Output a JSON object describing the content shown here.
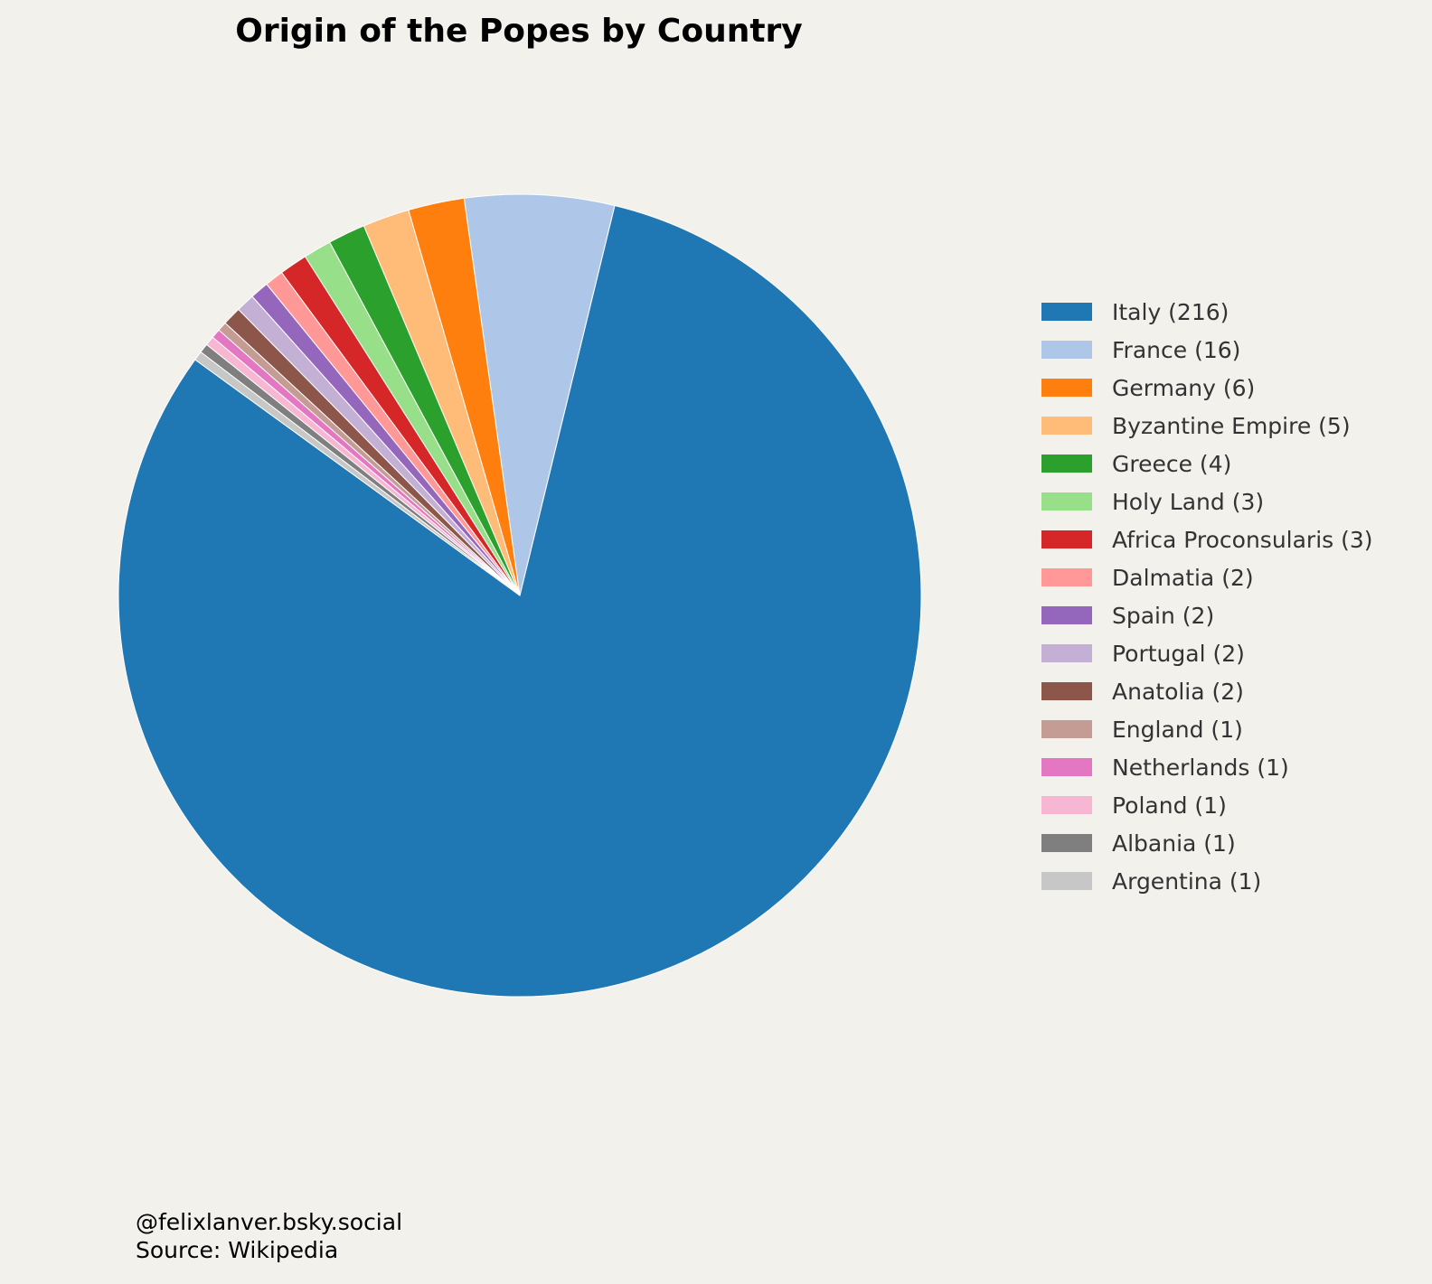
{
  "chart_data": {
    "type": "pie",
    "title": "Origin of the Popes by Country",
    "start_angle_deg": 144,
    "direction": "counterclockwise",
    "legend_position": "right",
    "categories": [
      "Italy (216)",
      "France (16)",
      "Germany (6)",
      "Byzantine Empire (5)",
      "Greece (4)",
      "Holy Land (3)",
      "Africa Proconsularis (3)",
      "Dalmatia (2)",
      "Spain (2)",
      "Portugal (2)",
      "Anatolia (2)",
      "England (1)",
      "Netherlands (1)",
      "Poland (1)",
      "Albania (1)",
      "Argentina (1)"
    ],
    "values": [
      216,
      16,
      6,
      5,
      4,
      3,
      3,
      2,
      2,
      2,
      2,
      1,
      1,
      1,
      1,
      1
    ],
    "colors": [
      "#1f77b4",
      "#aec7e8",
      "#ff7f0e",
      "#ffbb78",
      "#2ca02c",
      "#98df8a",
      "#d62728",
      "#ff9896",
      "#9467bd",
      "#c5b0d5",
      "#8c564b",
      "#c49c94",
      "#e377c2",
      "#f7b6d2",
      "#7f7f7f",
      "#c7c7c7"
    ]
  },
  "footer": {
    "credit": "@felixlanver.bsky.social",
    "source": "Source: Wikipedia"
  }
}
